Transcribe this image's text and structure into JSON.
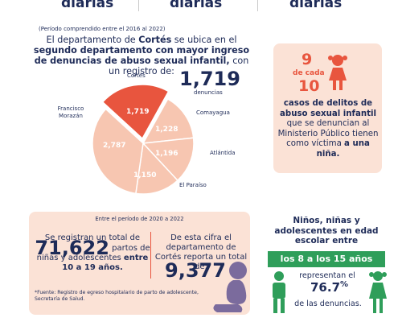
{
  "top_words": [
    "diarias",
    "diarias",
    "diarias"
  ],
  "period1": "(Período comprendido entre el 2016 al 2022)",
  "intro": {
    "p1": "El departamento de ",
    "p2": "Cortés",
    "p3": " se ubica en el ",
    "p4": "segundo departamento con mayor ingreso de denuncias de abuso sexual infantil,",
    "p5": " con un registro de:"
  },
  "cortes_total": "1,719",
  "cortes_total_unit": "denuncias",
  "chart_data": {
    "type": "pie",
    "title": "",
    "slices": [
      {
        "label": "Cortés",
        "value": 1719,
        "color": "#e8553e"
      },
      {
        "label": "Comayagua",
        "value": 1228,
        "color": "#f7c6b1"
      },
      {
        "label": "Atlántida",
        "value": 1196,
        "color": "#f7c6b1"
      },
      {
        "label": "El Paraíso",
        "value": 1150,
        "color": "#f7c6b1"
      },
      {
        "label": "Francisco Morazán",
        "value": 2787,
        "color": "#f7c6b1"
      }
    ]
  },
  "girl_box": {
    "nine": "9",
    "de_cada": "de cada",
    "ten": "10",
    "t1": "casos de delitos de abuso sexual infantil",
    "t2": " que se denuncian al Ministerio Público tienen como víctima ",
    "t3": "a una niña."
  },
  "period2": "Entre el período de 2020 a 2022",
  "stat_left": {
    "pre": "Se registran un total de",
    "num": "71,622",
    "mid": "partos de",
    "post": " niñas y adolescentes ",
    "bold": "entre 10 a 19 años."
  },
  "stat_right": {
    "text": "De esta cifra el departamento de Cortés reporta un total de:",
    "num": "9,377"
  },
  "footnote": "*Fuente: Registro de egreso hospitalario de parto de adolescente, Secretaría de Salud.",
  "kids": {
    "title": "Niños, niñas y adolescentes en edad escolar entre",
    "age": "los 8 a los 15 años",
    "rep": "representan el",
    "pct": "76.7",
    "pct_unit": "%",
    "den": "de las denuncias."
  },
  "colors": {
    "navy": "#1e2b58",
    "coral": "#e8553e",
    "peach": "#f7c6b1",
    "light_peach": "#fbe2d6",
    "green": "#2f9e5a",
    "purple": "#7b6b9d"
  }
}
